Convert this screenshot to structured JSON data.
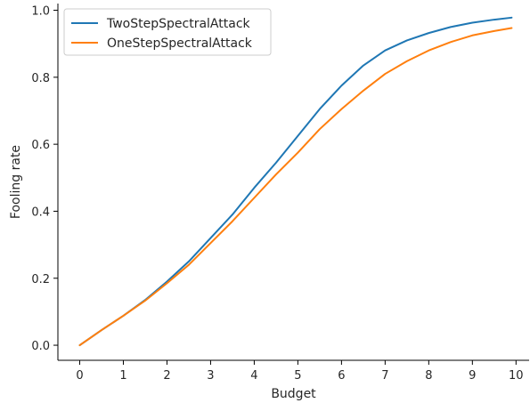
{
  "chart_data": {
    "type": "line",
    "title": "",
    "xlabel": "Budget",
    "ylabel": "Fooling rate",
    "xlim": [
      -0.5,
      10.3
    ],
    "ylim": [
      -0.045,
      1.02
    ],
    "xticks": [
      0,
      1,
      2,
      3,
      4,
      5,
      6,
      7,
      8,
      9,
      10
    ],
    "yticks": [
      0.0,
      0.2,
      0.4,
      0.6,
      0.8,
      1.0
    ],
    "xtick_labels": [
      "0",
      "1",
      "2",
      "3",
      "4",
      "5",
      "6",
      "7",
      "8",
      "9",
      "10"
    ],
    "ytick_labels": [
      "0.0",
      "0.2",
      "0.4",
      "0.6",
      "0.8",
      "1.0"
    ],
    "grid": false,
    "legend": "top-left",
    "series": [
      {
        "name": "TwoStepSpectralAttack",
        "color": "#1f77b4",
        "x": [
          0,
          0.5,
          1,
          1.5,
          2,
          2.5,
          3,
          3.5,
          4,
          4.5,
          5,
          5.5,
          6,
          6.5,
          7,
          7.5,
          8,
          8.5,
          9,
          9.5,
          9.9
        ],
        "y": [
          0.0,
          0.045,
          0.088,
          0.135,
          0.19,
          0.25,
          0.32,
          0.39,
          0.47,
          0.545,
          0.625,
          0.705,
          0.775,
          0.835,
          0.88,
          0.91,
          0.932,
          0.95,
          0.963,
          0.972,
          0.978
        ]
      },
      {
        "name": "OneStepSpectralAttack",
        "color": "#ff7f0e",
        "x": [
          0,
          0.5,
          1,
          1.5,
          2,
          2.5,
          3,
          3.5,
          4,
          4.5,
          5,
          5.5,
          6,
          6.5,
          7,
          7.5,
          8,
          8.5,
          9,
          9.5,
          9.9
        ],
        "y": [
          0.0,
          0.045,
          0.088,
          0.133,
          0.185,
          0.24,
          0.305,
          0.37,
          0.44,
          0.51,
          0.575,
          0.645,
          0.705,
          0.76,
          0.81,
          0.848,
          0.88,
          0.905,
          0.925,
          0.938,
          0.947
        ]
      }
    ]
  }
}
